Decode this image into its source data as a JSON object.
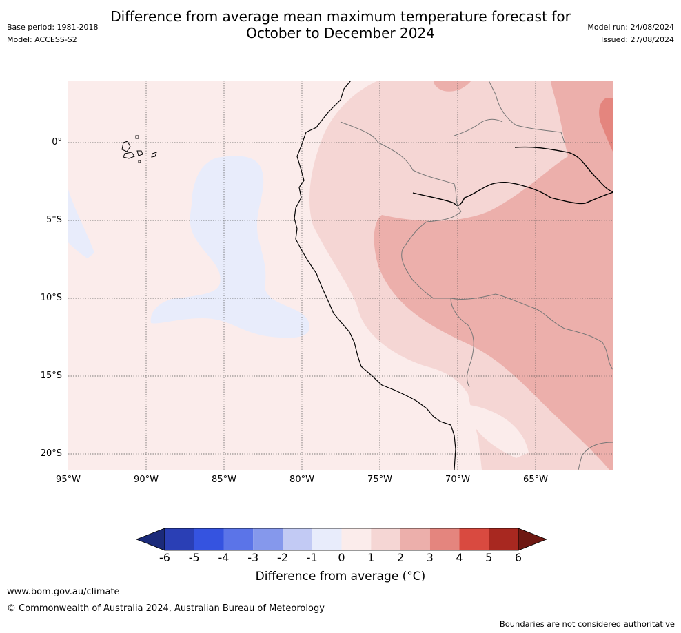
{
  "title_line1": "Difference from average mean maximum temperature forecast for",
  "title_line2": "October to December 2024",
  "base_period": "Base period: 1981-2018",
  "model": "Model: ACCESS-S2",
  "model_run": "Model run: 24/08/2024",
  "issued": "Issued: 27/08/2024",
  "lat_labels": [
    "0°",
    "5°S",
    "10°S",
    "15°S",
    "20°S"
  ],
  "lon_labels": [
    "95°W",
    "90°W",
    "85°W",
    "80°W",
    "75°W",
    "70°W",
    "65°W"
  ],
  "colorbar": {
    "ticks": [
      "-6",
      "-5",
      "-4",
      "-3",
      "-2",
      "-1",
      "0",
      "1",
      "2",
      "3",
      "4",
      "5",
      "6"
    ],
    "colors": [
      "#1b2a7a",
      "#2a3fb5",
      "#3553e0",
      "#5b74e8",
      "#8598ec",
      "#c2caf4",
      "#e8ecfb",
      "#fbeceb",
      "#f5d6d4",
      "#ecafab",
      "#e4857e",
      "#d94a40",
      "#a82820",
      "#6e1812"
    ],
    "label": "Difference from average (°C)"
  },
  "legend_colors": {
    "minus1_to_0": "#e8ecfb",
    "0_to_1": "#fbeceb",
    "1_to_2": "#f5d6d4",
    "2_to_3": "#ecafab",
    "3_to_4": "#e4857e"
  },
  "website": "www.bom.gov.au/climate",
  "copyright": "© Commonwealth of Australia 2024, Australian Bureau of Meteorology",
  "disclaimer": "Boundaries are not considered authoritative"
}
